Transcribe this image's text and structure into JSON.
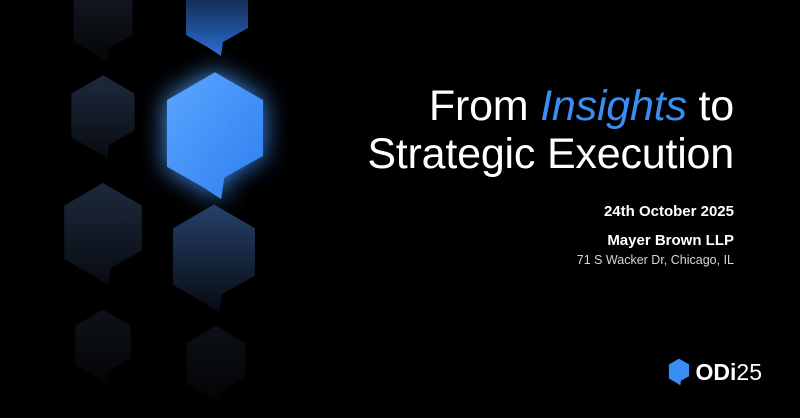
{
  "headline": {
    "line1_before": "From ",
    "line1_accent": "Insights",
    "line1_after": " to",
    "line2": "Strategic Execution"
  },
  "event": {
    "date": "24th October 2025",
    "venue_name": "Mayer Brown LLP",
    "venue_address": "71 S Wacker Dr, Chicago, IL"
  },
  "logo": {
    "brand": "ODi",
    "year": "25",
    "icon": "speech-bubble-icon"
  },
  "colors": {
    "background": "#000000",
    "accent": "#3b8df6",
    "text": "#ffffff"
  },
  "decoration": {
    "icon": "speech-bubble-icon"
  }
}
